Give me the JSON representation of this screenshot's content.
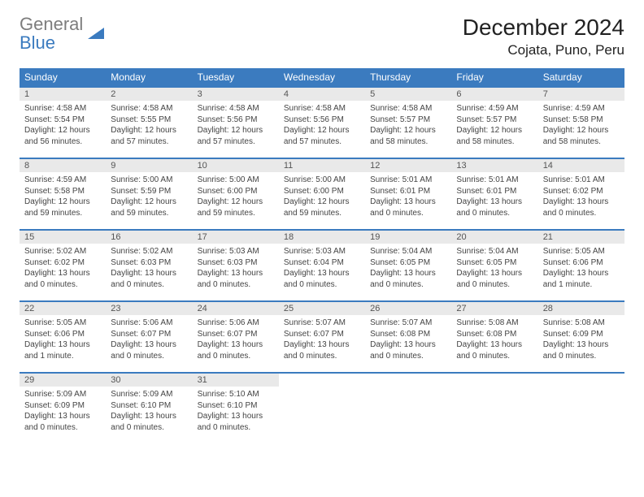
{
  "brand": {
    "word1": "General",
    "word2": "Blue"
  },
  "title": "December 2024",
  "location": "Cojata, Puno, Peru",
  "colors": {
    "header_bg": "#3b7bbf",
    "header_text": "#ffffff",
    "daynum_bg": "#e9e9e9",
    "rule": "#3b7bbf",
    "logo_gray": "#7d7d7d",
    "logo_blue": "#3b7bbf"
  },
  "daysOfWeek": [
    "Sunday",
    "Monday",
    "Tuesday",
    "Wednesday",
    "Thursday",
    "Friday",
    "Saturday"
  ],
  "weeks": [
    [
      {
        "n": "1",
        "sr": "4:58 AM",
        "ss": "5:54 PM",
        "dl": "12 hours and 56 minutes."
      },
      {
        "n": "2",
        "sr": "4:58 AM",
        "ss": "5:55 PM",
        "dl": "12 hours and 57 minutes."
      },
      {
        "n": "3",
        "sr": "4:58 AM",
        "ss": "5:56 PM",
        "dl": "12 hours and 57 minutes."
      },
      {
        "n": "4",
        "sr": "4:58 AM",
        "ss": "5:56 PM",
        "dl": "12 hours and 57 minutes."
      },
      {
        "n": "5",
        "sr": "4:58 AM",
        "ss": "5:57 PM",
        "dl": "12 hours and 58 minutes."
      },
      {
        "n": "6",
        "sr": "4:59 AM",
        "ss": "5:57 PM",
        "dl": "12 hours and 58 minutes."
      },
      {
        "n": "7",
        "sr": "4:59 AM",
        "ss": "5:58 PM",
        "dl": "12 hours and 58 minutes."
      }
    ],
    [
      {
        "n": "8",
        "sr": "4:59 AM",
        "ss": "5:58 PM",
        "dl": "12 hours and 59 minutes."
      },
      {
        "n": "9",
        "sr": "5:00 AM",
        "ss": "5:59 PM",
        "dl": "12 hours and 59 minutes."
      },
      {
        "n": "10",
        "sr": "5:00 AM",
        "ss": "6:00 PM",
        "dl": "12 hours and 59 minutes."
      },
      {
        "n": "11",
        "sr": "5:00 AM",
        "ss": "6:00 PM",
        "dl": "12 hours and 59 minutes."
      },
      {
        "n": "12",
        "sr": "5:01 AM",
        "ss": "6:01 PM",
        "dl": "13 hours and 0 minutes."
      },
      {
        "n": "13",
        "sr": "5:01 AM",
        "ss": "6:01 PM",
        "dl": "13 hours and 0 minutes."
      },
      {
        "n": "14",
        "sr": "5:01 AM",
        "ss": "6:02 PM",
        "dl": "13 hours and 0 minutes."
      }
    ],
    [
      {
        "n": "15",
        "sr": "5:02 AM",
        "ss": "6:02 PM",
        "dl": "13 hours and 0 minutes."
      },
      {
        "n": "16",
        "sr": "5:02 AM",
        "ss": "6:03 PM",
        "dl": "13 hours and 0 minutes."
      },
      {
        "n": "17",
        "sr": "5:03 AM",
        "ss": "6:03 PM",
        "dl": "13 hours and 0 minutes."
      },
      {
        "n": "18",
        "sr": "5:03 AM",
        "ss": "6:04 PM",
        "dl": "13 hours and 0 minutes."
      },
      {
        "n": "19",
        "sr": "5:04 AM",
        "ss": "6:05 PM",
        "dl": "13 hours and 0 minutes."
      },
      {
        "n": "20",
        "sr": "5:04 AM",
        "ss": "6:05 PM",
        "dl": "13 hours and 0 minutes."
      },
      {
        "n": "21",
        "sr": "5:05 AM",
        "ss": "6:06 PM",
        "dl": "13 hours and 1 minute."
      }
    ],
    [
      {
        "n": "22",
        "sr": "5:05 AM",
        "ss": "6:06 PM",
        "dl": "13 hours and 1 minute."
      },
      {
        "n": "23",
        "sr": "5:06 AM",
        "ss": "6:07 PM",
        "dl": "13 hours and 0 minutes."
      },
      {
        "n": "24",
        "sr": "5:06 AM",
        "ss": "6:07 PM",
        "dl": "13 hours and 0 minutes."
      },
      {
        "n": "25",
        "sr": "5:07 AM",
        "ss": "6:07 PM",
        "dl": "13 hours and 0 minutes."
      },
      {
        "n": "26",
        "sr": "5:07 AM",
        "ss": "6:08 PM",
        "dl": "13 hours and 0 minutes."
      },
      {
        "n": "27",
        "sr": "5:08 AM",
        "ss": "6:08 PM",
        "dl": "13 hours and 0 minutes."
      },
      {
        "n": "28",
        "sr": "5:08 AM",
        "ss": "6:09 PM",
        "dl": "13 hours and 0 minutes."
      }
    ],
    [
      {
        "n": "29",
        "sr": "5:09 AM",
        "ss": "6:09 PM",
        "dl": "13 hours and 0 minutes."
      },
      {
        "n": "30",
        "sr": "5:09 AM",
        "ss": "6:10 PM",
        "dl": "13 hours and 0 minutes."
      },
      {
        "n": "31",
        "sr": "5:10 AM",
        "ss": "6:10 PM",
        "dl": "13 hours and 0 minutes."
      },
      null,
      null,
      null,
      null
    ]
  ],
  "labels": {
    "sunrise": "Sunrise:",
    "sunset": "Sunset:",
    "daylight": "Daylight:"
  }
}
